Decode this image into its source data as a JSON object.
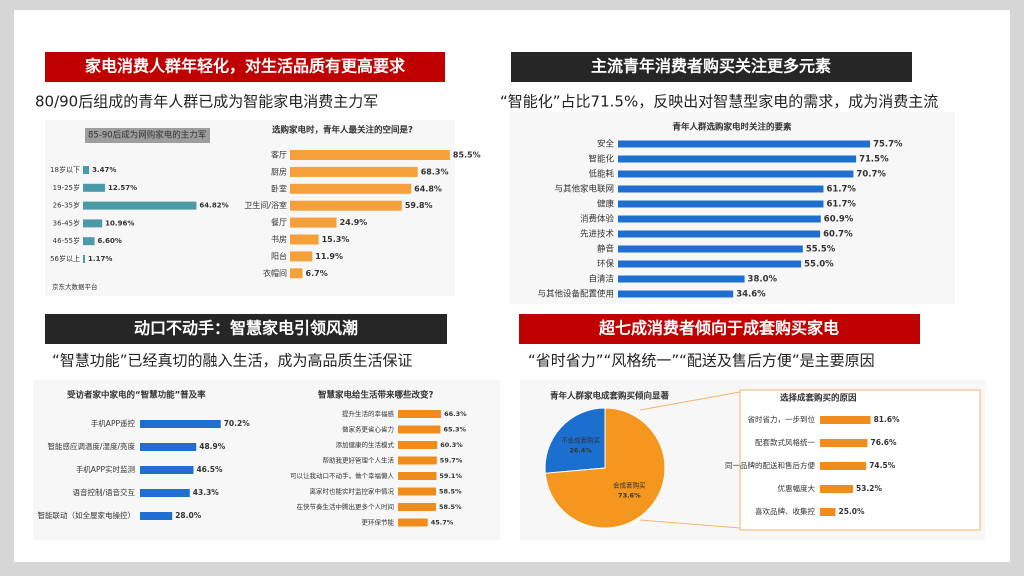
{
  "panels": [
    {
      "header": "家电消费人群年轻化，对生活品质有更高要求",
      "subtitle": "80/90后组成的青年人群已成为智能家电消费主力军"
    },
    {
      "header": "主流青年消费者购买关注更多元素",
      "subtitle": "“智能化”占比71.5%，反映出对智慧型家电的需求，成为消费主流"
    },
    {
      "header": "动口不动手：智慧家电引领风潮",
      "subtitle": "“智慧功能”已经真切的融入生活，成为高品质生活保证"
    },
    {
      "header": "超七成消费者倾向于成套购买家电",
      "subtitle": "“省时省力”“风格统一”“配送及售后方便”是主要原因"
    }
  ],
  "chart_data": [
    {
      "type": "bar",
      "title": "85-90后成为网购家电的主力军",
      "source": "京东大数据平台",
      "color": "#4a9aa8",
      "categories": [
        "18岁以下",
        "19-25岁",
        "26-35岁",
        "36-45岁",
        "46-55岁",
        "56岁以上"
      ],
      "values": [
        3.47,
        12.57,
        64.82,
        10.96,
        6.6,
        1.17
      ],
      "value_labels": [
        "3.47%",
        "12.57%",
        "64.82%",
        "10.96%",
        "6.60%",
        "1.17%"
      ]
    },
    {
      "type": "bar",
      "title": "选购家电时，青年人最关注的空间是?",
      "color": "#f5a03a",
      "categories": [
        "客厅",
        "厨房",
        "卧室",
        "卫生间/浴室",
        "餐厅",
        "书房",
        "阳台",
        "衣帽间"
      ],
      "values": [
        85.5,
        68.3,
        64.8,
        59.8,
        24.9,
        15.3,
        11.9,
        6.7
      ],
      "value_labels": [
        "85.5%",
        "68.3%",
        "64.8%",
        "59.8%",
        "24.9%",
        "15.3%",
        "11.9%",
        "6.7%"
      ]
    },
    {
      "type": "bar",
      "title": "青年人群选购家电时关注的要素",
      "color": "#1f6fd0",
      "categories": [
        "安全",
        "智能化",
        "低能耗",
        "与其他家电联网",
        "健康",
        "消费体验",
        "先进技术",
        "静音",
        "环保",
        "自清洁",
        "与其他设备配置使用"
      ],
      "values": [
        75.7,
        71.5,
        70.7,
        61.7,
        61.7,
        60.9,
        60.7,
        55.5,
        55.0,
        38.0,
        34.6
      ],
      "value_labels": [
        "75.7%",
        "71.5%",
        "70.7%",
        "61.7%",
        "61.7%",
        "60.9%",
        "60.7%",
        "55.5%",
        "55.0%",
        "38.0%",
        "34.6%"
      ]
    },
    {
      "type": "bar",
      "title": "受访者家中家电的“智慧功能”普及率",
      "color": "#1f6fd0",
      "categories": [
        "手机APP遥控",
        "智能感应调温度/湿度/亮度",
        "手机APP实时监测",
        "语音控制/语音交互",
        "智能联动（如全屋家电操控）"
      ],
      "values": [
        70.2,
        48.9,
        46.5,
        43.3,
        28.0
      ],
      "value_labels": [
        "70.2%",
        "48.9%",
        "46.5%",
        "43.3%",
        "28.0%"
      ]
    },
    {
      "type": "bar",
      "title": "智慧家电给生活带来哪些改变?",
      "color": "#f08c1c",
      "categories": [
        "提升生活的幸福感",
        "做家务更省心省力",
        "添加健康的生活模式",
        "帮助我更好管理个人生活",
        "可以让我动口不动手，做个幸福懒人",
        "离家时也能实时监控家中情况",
        "在快节奏生活中腾出更多个人时间",
        "更环保节能"
      ],
      "values": [
        66.3,
        65.3,
        60.3,
        59.7,
        59.1,
        58.5,
        58.5,
        45.7
      ],
      "value_labels": [
        "66.3%",
        "65.3%",
        "60.3%",
        "59.7%",
        "59.1%",
        "58.5%",
        "58.5%",
        "45.7%"
      ]
    },
    {
      "type": "pie",
      "title": "青年人群家电成套购买倾向显著",
      "colors": [
        "#1a6fcf",
        "#f5961e"
      ],
      "categories": [
        "不会成套购买",
        "会成套购买"
      ],
      "values": [
        26.4,
        73.6
      ],
      "value_labels": [
        "26.4%",
        "73.6%"
      ]
    },
    {
      "type": "bar",
      "title": "选择成套购买的原因",
      "color": "#f08c1c",
      "categories": [
        "省时省力，一步到位",
        "配套款式风格统一",
        "同一品牌的配送和售后方便",
        "优惠幅度大",
        "喜欢品牌、收集控"
      ],
      "values": [
        81.6,
        76.6,
        74.5,
        53.2,
        25.0
      ],
      "value_labels": [
        "81.6%",
        "76.6%",
        "74.5%",
        "53.2%",
        "25.0%"
      ]
    }
  ]
}
